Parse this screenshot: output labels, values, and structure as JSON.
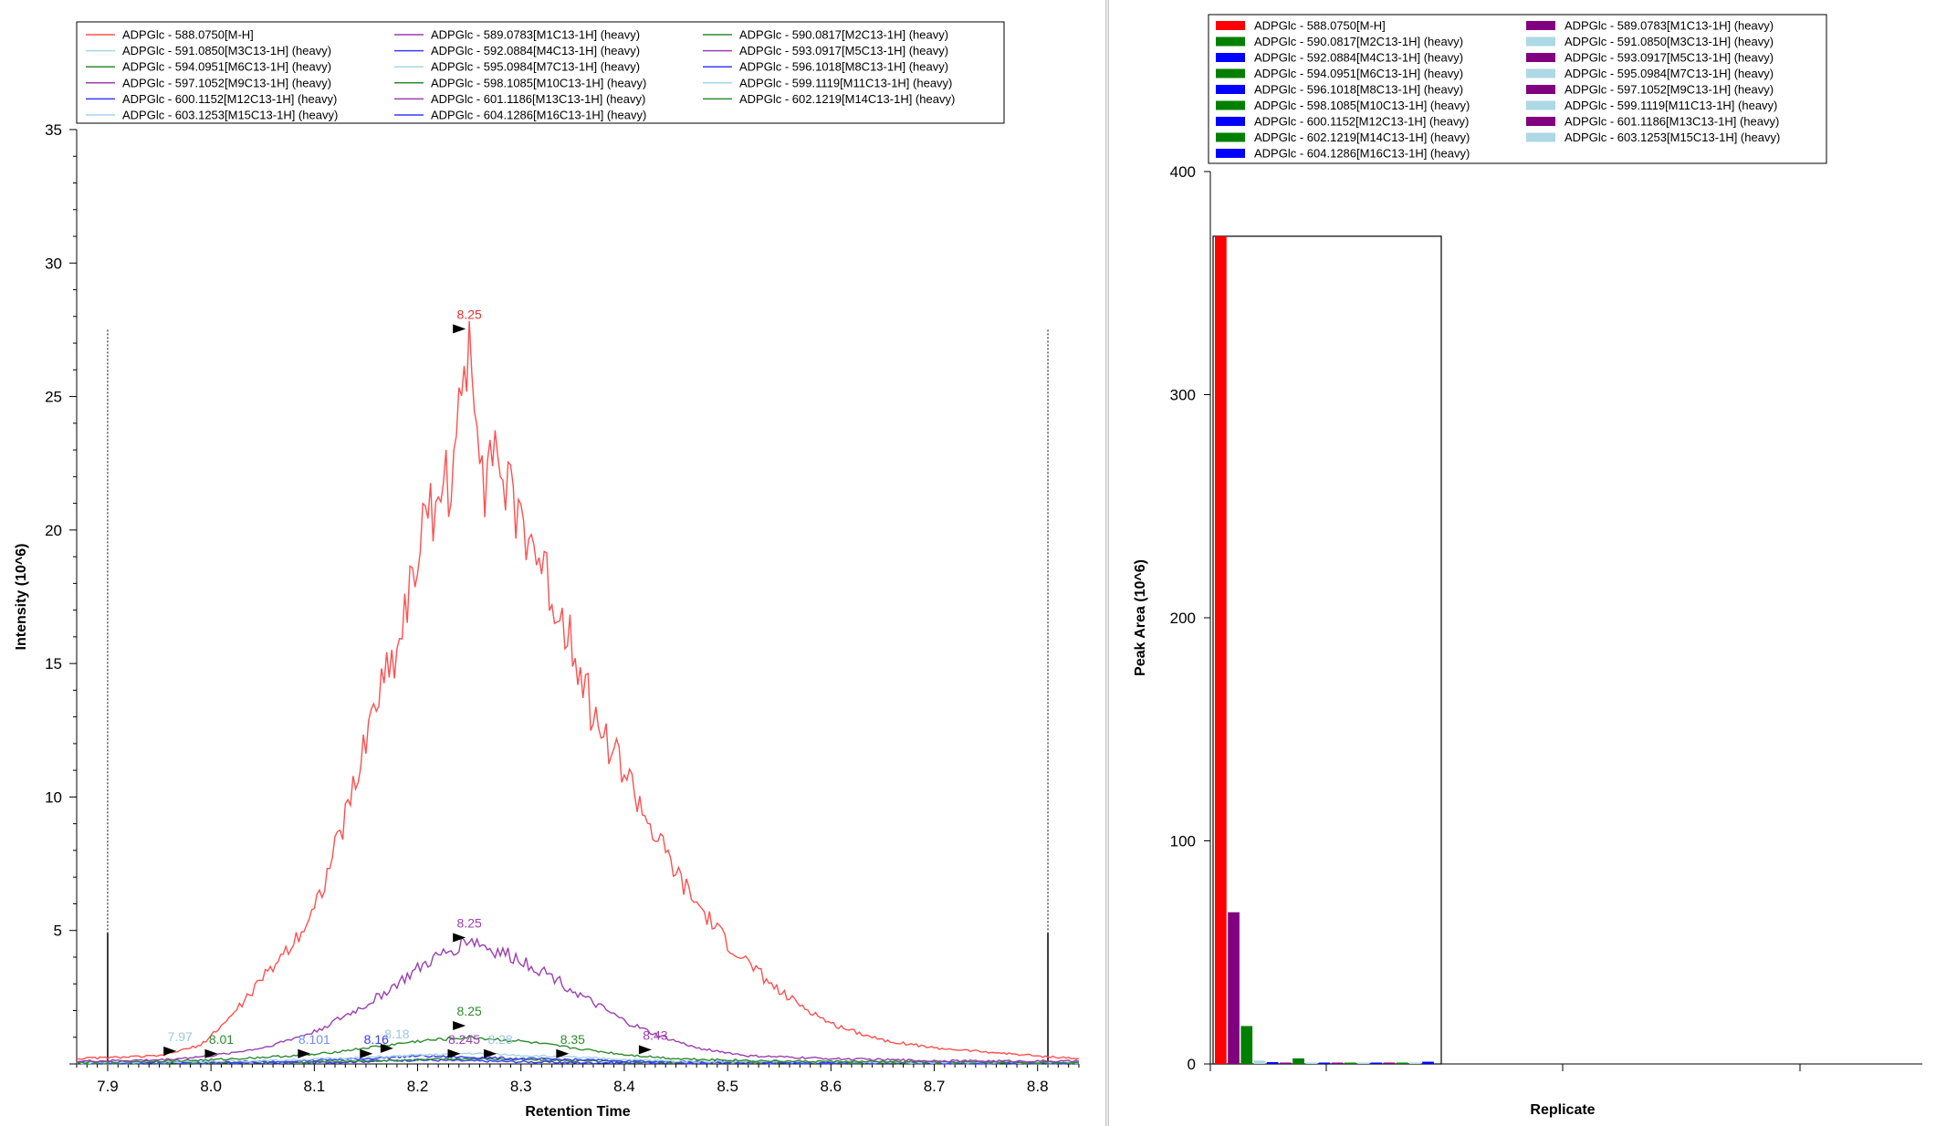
{
  "chart_data": [
    {
      "type": "line",
      "xlabel": "Retention Time",
      "ylabel": "Intensity (10^6)",
      "xlim": [
        7.87,
        8.84
      ],
      "ylim": [
        0,
        35
      ],
      "xticks": [
        "7.9",
        "8.0",
        "8.1",
        "8.2",
        "8.3",
        "8.4",
        "8.5",
        "8.6",
        "8.7",
        "8.8"
      ],
      "yticks": [
        "5",
        "10",
        "15",
        "20",
        "25",
        "30",
        "35"
      ],
      "integration_boundaries": [
        7.9,
        8.81
      ],
      "legend": {
        "placement": "top",
        "entries": [
          {
            "label": "ADPGlc - 588.0750[M-H]",
            "color": "#ff5050"
          },
          {
            "label": "ADPGlc - 589.0783[M1C13-1H] (heavy)",
            "color": "#9b3fb0"
          },
          {
            "label": "ADPGlc - 590.0817[M2C13-1H] (heavy)",
            "color": "#2e8b2e"
          },
          {
            "label": "ADPGlc - 591.0850[M3C13-1H] (heavy)",
            "color": "#a8d4e6"
          },
          {
            "label": "ADPGlc - 592.0884[M4C13-1H] (heavy)",
            "color": "#3a3aff"
          },
          {
            "label": "ADPGlc - 593.0917[M5C13-1H] (heavy)",
            "color": "#9b3fb0"
          },
          {
            "label": "ADPGlc - 594.0951[M6C13-1H] (heavy)",
            "color": "#2e8b2e"
          },
          {
            "label": "ADPGlc - 595.0984[M7C13-1H] (heavy)",
            "color": "#a8d4e6"
          },
          {
            "label": "ADPGlc - 596.1018[M8C13-1H] (heavy)",
            "color": "#3a3aff"
          },
          {
            "label": "ADPGlc - 597.1052[M9C13-1H] (heavy)",
            "color": "#9b3fb0"
          },
          {
            "label": "ADPGlc - 598.1085[M10C13-1H] (heavy)",
            "color": "#2e8b2e"
          },
          {
            "label": "ADPGlc - 599.1119[M11C13-1H] (heavy)",
            "color": "#a8d4e6"
          },
          {
            "label": "ADPGlc - 600.1152[M12C13-1H] (heavy)",
            "color": "#3a3aff"
          },
          {
            "label": "ADPGlc - 601.1186[M13C13-1H] (heavy)",
            "color": "#9b3fb0"
          },
          {
            "label": "ADPGlc - 602.1219[M14C13-1H] (heavy)",
            "color": "#2e8b2e"
          },
          {
            "label": "ADPGlc - 603.1253[M15C13-1H] (heavy)",
            "color": "#a8d4e6"
          },
          {
            "label": "ADPGlc - 604.1286[M16C13-1H] (heavy)",
            "color": "#3a3aff"
          }
        ]
      },
      "series": [
        {
          "name": "ADPGlc - 588.0750[M-H]",
          "color": "#ff5050",
          "peak_rt": 8.25,
          "peak_intensity": 27.5,
          "points": [
            [
              7.87,
              0.2
            ],
            [
              7.95,
              0.3
            ],
            [
              7.99,
              0.7
            ],
            [
              8.02,
              1.8
            ],
            [
              8.05,
              3.2
            ],
            [
              8.08,
              4.6
            ],
            [
              8.1,
              5.8
            ],
            [
              8.12,
              8.0
            ],
            [
              8.14,
              10.5
            ],
            [
              8.16,
              13.8
            ],
            [
              8.18,
              15.6
            ],
            [
              8.2,
              19.2
            ],
            [
              8.22,
              21.6
            ],
            [
              8.235,
              22.0
            ],
            [
              8.25,
              27.5
            ],
            [
              8.265,
              22.0
            ],
            [
              8.27,
              23.5
            ],
            [
              8.29,
              21.0
            ],
            [
              8.31,
              19.7
            ],
            [
              8.33,
              17.5
            ],
            [
              8.35,
              16.0
            ],
            [
              8.37,
              13.0
            ],
            [
              8.4,
              11.0
            ],
            [
              8.43,
              8.5
            ],
            [
              8.46,
              6.5
            ],
            [
              8.5,
              4.5
            ],
            [
              8.55,
              2.7
            ],
            [
              8.6,
              1.5
            ],
            [
              8.65,
              0.9
            ],
            [
              8.7,
              0.6
            ],
            [
              8.8,
              0.3
            ],
            [
              8.84,
              0.2
            ]
          ]
        },
        {
          "name": "ADPGlc - 589.0783[M1C13-1H] (heavy)",
          "color": "#9b3fb0",
          "peak_rt": 8.25,
          "peak_intensity": 4.7,
          "points": [
            [
              7.87,
              0.1
            ],
            [
              7.95,
              0.15
            ],
            [
              8.0,
              0.3
            ],
            [
              8.05,
              0.6
            ],
            [
              8.1,
              1.2
            ],
            [
              8.15,
              2.2
            ],
            [
              8.18,
              3.0
            ],
            [
              8.21,
              3.8
            ],
            [
              8.23,
              4.2
            ],
            [
              8.25,
              4.7
            ],
            [
              8.27,
              4.3
            ],
            [
              8.3,
              3.9
            ],
            [
              8.33,
              3.3
            ],
            [
              8.36,
              2.5
            ],
            [
              8.4,
              1.6
            ],
            [
              8.43,
              1.1
            ],
            [
              8.47,
              0.6
            ],
            [
              8.52,
              0.3
            ],
            [
              8.6,
              0.2
            ],
            [
              8.7,
              0.12
            ],
            [
              8.84,
              0.1
            ]
          ]
        },
        {
          "name": "ADPGlc - 590.0817[M2C13-1H] (heavy)",
          "color": "#2e8b2e",
          "peak_rt": 8.25,
          "peak_intensity": 1.0,
          "points": [
            [
              7.87,
              0.05
            ],
            [
              8.0,
              0.15
            ],
            [
              8.1,
              0.35
            ],
            [
              8.15,
              0.6
            ],
            [
              8.2,
              0.85
            ],
            [
              8.25,
              1.0
            ],
            [
              8.3,
              0.85
            ],
            [
              8.35,
              0.6
            ],
            [
              8.4,
              0.35
            ],
            [
              8.45,
              0.2
            ],
            [
              8.55,
              0.1
            ],
            [
              8.84,
              0.05
            ]
          ]
        },
        {
          "name": "ADPGlc - 591.0850[M3C13-1H] (heavy)",
          "color": "#a8d4e6",
          "peak_rt": 8.25,
          "peak_intensity": 0.4,
          "points": [
            [
              7.87,
              0.05
            ],
            [
              8.05,
              0.12
            ],
            [
              8.15,
              0.25
            ],
            [
              8.25,
              0.4
            ],
            [
              8.35,
              0.25
            ],
            [
              8.45,
              0.1
            ],
            [
              8.84,
              0.05
            ]
          ]
        },
        {
          "name": "ADPGlc - 592.0884[M4C13-1H] (heavy)",
          "color": "#3a3aff",
          "peak_rt": 8.2,
          "peak_intensity": 0.3,
          "points": [
            [
              7.87,
              0.05
            ],
            [
              8.05,
              0.08
            ],
            [
              8.15,
              0.2
            ],
            [
              8.2,
              0.3
            ],
            [
              8.3,
              0.2
            ],
            [
              8.45,
              0.08
            ],
            [
              8.84,
              0.04
            ]
          ]
        },
        {
          "name": "ADPGlc - 602.1219[M14C13-1H] (heavy)",
          "color": "#2e8b2e",
          "peak_rt": 8.25,
          "peak_intensity": 0.2,
          "points": [
            [
              7.87,
              0.02
            ],
            [
              8.1,
              0.08
            ],
            [
              8.25,
              0.2
            ],
            [
              8.4,
              0.08
            ],
            [
              8.84,
              0.02
            ]
          ]
        },
        {
          "name": "ADPGlc - 604.1286[M16C13-1H] (heavy)",
          "color": "#3a3aff",
          "peak_rt": 8.2,
          "peak_intensity": 0.15,
          "points": [
            [
              7.87,
              0.02
            ],
            [
              8.1,
              0.05
            ],
            [
              8.2,
              0.15
            ],
            [
              8.35,
              0.05
            ],
            [
              8.84,
              0.02
            ]
          ]
        }
      ],
      "peak_annotations": [
        {
          "x": 8.25,
          "y": 27.5,
          "label": "8.25",
          "color": "#e03030"
        },
        {
          "x": 8.25,
          "y": 4.7,
          "label": "8.25",
          "color": "#9b3fb0"
        },
        {
          "x": 8.25,
          "y": 1.4,
          "label": "8.25",
          "color": "#2e8b2e"
        },
        {
          "x": 7.97,
          "y": 0.45,
          "label": "7.97",
          "color": "#9cc8e0"
        },
        {
          "x": 8.01,
          "y": 0.35,
          "label": "8.01",
          "color": "#2e8b2e"
        },
        {
          "x": 8.1,
          "y": 0.35,
          "label": "8.101",
          "color": "#6f8fff"
        },
        {
          "x": 8.16,
          "y": 0.35,
          "label": "8.16",
          "color": "#3a3aff"
        },
        {
          "x": 8.18,
          "y": 0.55,
          "label": "8.18",
          "color": "#9cc8e0"
        },
        {
          "x": 8.245,
          "y": 0.35,
          "label": "8.245",
          "color": "#9b3fb0"
        },
        {
          "x": 8.28,
          "y": 0.35,
          "label": "8.28",
          "color": "#9cc8e0"
        },
        {
          "x": 8.35,
          "y": 0.35,
          "label": "8.35",
          "color": "#2e8b2e"
        },
        {
          "x": 8.43,
          "y": 0.5,
          "label": "8.43",
          "color": "#9b3fb0"
        }
      ]
    },
    {
      "type": "bar",
      "xlabel": "Replicate",
      "ylabel": "Peak Area (10^6)",
      "ylim": [
        0,
        400
      ],
      "yticks": [
        "0",
        "100",
        "200",
        "300",
        "400"
      ],
      "total_box_value": 371,
      "legend": {
        "placement": "top",
        "entries": [
          {
            "label": "ADPGlc - 588.0750[M-H]",
            "color": "#ff0000"
          },
          {
            "label": "ADPGlc - 589.0783[M1C13-1H] (heavy)",
            "color": "#800080"
          },
          {
            "label": "ADPGlc - 590.0817[M2C13-1H] (heavy)",
            "color": "#008000"
          },
          {
            "label": "ADPGlc - 591.0850[M3C13-1H] (heavy)",
            "color": "#add8e6"
          },
          {
            "label": "ADPGlc - 592.0884[M4C13-1H] (heavy)",
            "color": "#0000ff"
          },
          {
            "label": "ADPGlc - 593.0917[M5C13-1H] (heavy)",
            "color": "#800080"
          },
          {
            "label": "ADPGlc - 594.0951[M6C13-1H] (heavy)",
            "color": "#008000"
          },
          {
            "label": "ADPGlc - 595.0984[M7C13-1H] (heavy)",
            "color": "#add8e6"
          },
          {
            "label": "ADPGlc - 596.1018[M8C13-1H] (heavy)",
            "color": "#0000ff"
          },
          {
            "label": "ADPGlc - 597.1052[M9C13-1H] (heavy)",
            "color": "#800080"
          },
          {
            "label": "ADPGlc - 598.1085[M10C13-1H] (heavy)",
            "color": "#008000"
          },
          {
            "label": "ADPGlc - 599.1119[M11C13-1H] (heavy)",
            "color": "#add8e6"
          },
          {
            "label": "ADPGlc - 600.1152[M12C13-1H] (heavy)",
            "color": "#0000ff"
          },
          {
            "label": "ADPGlc - 601.1186[M13C13-1H] (heavy)",
            "color": "#800080"
          },
          {
            "label": "ADPGlc - 602.1219[M14C13-1H] (heavy)",
            "color": "#008000"
          },
          {
            "label": "ADPGlc - 603.1253[M15C13-1H] (heavy)",
            "color": "#add8e6"
          },
          {
            "label": "ADPGlc - 604.1286[M16C13-1H] (heavy)",
            "color": "#0000ff"
          }
        ]
      },
      "values": [
        371,
        68,
        17,
        1.5,
        0.8,
        0.6,
        2.5,
        0.5,
        0.5,
        0.4,
        0.5,
        0.3,
        0.3,
        0.3,
        0.4,
        0.3,
        1.0
      ]
    }
  ]
}
